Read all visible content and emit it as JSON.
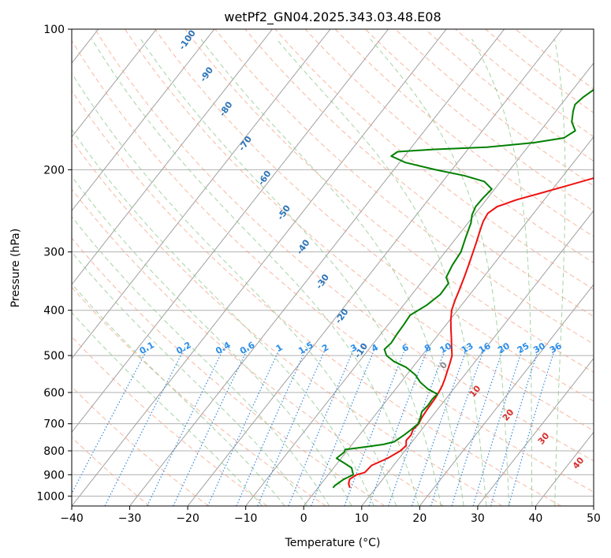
{
  "chart_data": {
    "type": "line",
    "title": "wetPf2_GN04.2025.343.03.48.E08",
    "xlabel": "Temperature (°C)",
    "ylabel": "Pressure (hPa)",
    "xlim": [
      -40,
      50
    ],
    "ylim": [
      1050,
      100
    ],
    "y_scale": "log",
    "x_ticks": [
      -40,
      -30,
      -20,
      -10,
      0,
      10,
      20,
      30,
      40,
      50
    ],
    "x_tick_labels": [
      "−40",
      "−30",
      "−20",
      "−10",
      "0",
      "10",
      "20",
      "30",
      "40",
      "50"
    ],
    "y_ticks": [
      100,
      200,
      300,
      400,
      500,
      600,
      700,
      800,
      900,
      1000
    ],
    "y_tick_labels": [
      "100",
      "200",
      "300",
      "400",
      "500",
      "600",
      "700",
      "800",
      "900",
      "1000"
    ],
    "grid": true,
    "series": [
      {
        "name": "",
        "color": "#ee1111",
        "points": [
          [
            5.5,
            960
          ],
          [
            4.7,
            940
          ],
          [
            4.3,
            920
          ],
          [
            4.9,
            900
          ],
          [
            6.0,
            890
          ],
          [
            6.2,
            860
          ],
          [
            8.0,
            830
          ],
          [
            9.2,
            800
          ],
          [
            9.5,
            780
          ],
          [
            8.8,
            760
          ],
          [
            8.9,
            740
          ],
          [
            8.5,
            720
          ],
          [
            8.7,
            700
          ],
          [
            8.4,
            680
          ],
          [
            8.2,
            650
          ],
          [
            8.1,
            620
          ],
          [
            7.9,
            600
          ],
          [
            7.6,
            580
          ],
          [
            7.1,
            560
          ],
          [
            6.5,
            540
          ],
          [
            5.9,
            520
          ],
          [
            5.2,
            500
          ],
          [
            4.0,
            480
          ],
          [
            2.8,
            460
          ],
          [
            1.5,
            440
          ],
          [
            0.2,
            420
          ],
          [
            -1.0,
            400
          ],
          [
            -1.8,
            380
          ],
          [
            -2.5,
            360
          ],
          [
            -3.3,
            340
          ],
          [
            -4.2,
            320
          ],
          [
            -5.2,
            300
          ],
          [
            -6.0,
            285
          ],
          [
            -6.9,
            270
          ],
          [
            -7.6,
            258
          ],
          [
            -7.9,
            248
          ],
          [
            -7.2,
            240
          ],
          [
            -4.8,
            232
          ],
          [
            -1.3,
            224
          ],
          [
            2.2,
            216
          ],
          [
            5.8,
            208
          ],
          [
            9.2,
            200
          ],
          [
            11.6,
            193
          ],
          [
            13.3,
            185
          ],
          [
            14.1,
            175
          ],
          [
            15.2,
            165
          ],
          [
            17.0,
            155
          ],
          [
            19.4,
            147
          ],
          [
            21.4,
            140
          ],
          [
            23.7,
            132
          ],
          [
            25.4,
            125
          ],
          [
            26.2,
            118
          ],
          [
            26.8,
            112
          ],
          [
            27.4,
            108
          ],
          [
            28.4,
            104
          ],
          [
            29.9,
            100
          ]
        ]
      },
      {
        "name": "",
        "color": "#008000",
        "points": [
          [
            2.6,
            960
          ],
          [
            2.6,
            950
          ],
          [
            3.3,
            920
          ],
          [
            4.3,
            900
          ],
          [
            3.1,
            870
          ],
          [
            1.2,
            850
          ],
          [
            -0.8,
            830
          ],
          [
            -0.3,
            805
          ],
          [
            -0.5,
            795
          ],
          [
            2.6,
            785
          ],
          [
            5.4,
            775
          ],
          [
            6.9,
            765
          ],
          [
            7.7,
            740
          ],
          [
            8.2,
            720
          ],
          [
            8.6,
            700
          ],
          [
            8.2,
            680
          ],
          [
            7.6,
            660
          ],
          [
            7.8,
            640
          ],
          [
            7.7,
            620
          ],
          [
            7.9,
            605
          ],
          [
            5.6,
            590
          ],
          [
            3.3,
            570
          ],
          [
            1.5,
            550
          ],
          [
            -1.1,
            530
          ],
          [
            -4.0,
            515
          ],
          [
            -6.1,
            500
          ],
          [
            -7.3,
            485
          ],
          [
            -7.0,
            470
          ],
          [
            -7.2,
            450
          ],
          [
            -7.3,
            430
          ],
          [
            -7.5,
            410
          ],
          [
            -6.0,
            390
          ],
          [
            -5.1,
            370
          ],
          [
            -5.2,
            350
          ],
          [
            -6.4,
            340
          ],
          [
            -7.0,
            320
          ],
          [
            -7.3,
            300
          ],
          [
            -8.4,
            280
          ],
          [
            -9.5,
            260
          ],
          [
            -10.4,
            250
          ],
          [
            -10.9,
            240
          ],
          [
            -10.8,
            230
          ],
          [
            -10.5,
            220
          ],
          [
            -12.8,
            212
          ],
          [
            -17.0,
            206
          ],
          [
            -22.8,
            200
          ],
          [
            -29.0,
            193
          ],
          [
            -32.3,
            187
          ],
          [
            -31.8,
            183
          ],
          [
            -26.0,
            181
          ],
          [
            -17.0,
            179
          ],
          [
            -9.5,
            175
          ],
          [
            -5.0,
            171
          ],
          [
            -4.0,
            165
          ],
          [
            -5.8,
            158
          ],
          [
            -7.0,
            150
          ],
          [
            -7.6,
            145
          ],
          [
            -7.2,
            140
          ],
          [
            -6.1,
            133
          ],
          [
            -5.6,
            125
          ],
          [
            -5.3,
            118
          ],
          [
            -4.6,
            110
          ],
          [
            -1.9,
            105
          ],
          [
            0,
            100
          ]
        ]
      }
    ],
    "dry_adiabat_labels": [
      "-100",
      "-90",
      "-80",
      "-70",
      "-60",
      "-50",
      "-40",
      "-30",
      "-20",
      "-10"
    ],
    "mixing_ratio_labels": [
      "0.1",
      "0.2",
      "0.4",
      "0.6",
      "1",
      "1.5",
      "2",
      "3",
      "4",
      "6",
      "8",
      "10",
      "13",
      "16",
      "20",
      "25",
      "30",
      "36"
    ],
    "moist_adiabat_labels": [
      "0",
      "10",
      "20",
      "30",
      "40"
    ],
    "colors": {
      "temperature": "#ee1111",
      "dewpoint": "#008000",
      "isotherm": "#a0a0a0",
      "isobar": "#b0b0b0",
      "dry_adiabat": "#f4a080",
      "moist_adiabat": "#90c890",
      "mixing_ratio": "#3388dd",
      "dry_label": "#2a74b8",
      "mix_label": "#2b8ee8",
      "moist_label": "#d83030",
      "zero_label": "#888888"
    }
  }
}
